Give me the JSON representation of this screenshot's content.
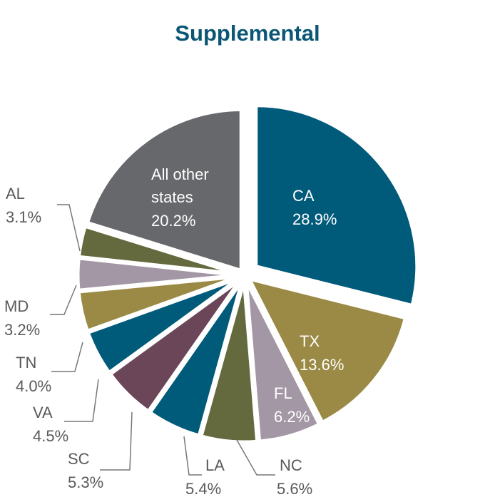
{
  "chart_data": {
    "type": "pie",
    "title": "Supplemental",
    "slices": [
      {
        "label": "CA",
        "value": 28.9,
        "display": "28.9%",
        "color": "#005a7a"
      },
      {
        "label": "TX",
        "value": 13.6,
        "display": "13.6%",
        "color": "#9a8a45"
      },
      {
        "label": "FL",
        "value": 6.2,
        "display": "6.2%",
        "color": "#a397a6"
      },
      {
        "label": "NC",
        "value": 5.6,
        "display": "5.6%",
        "color": "#656a3e"
      },
      {
        "label": "LA",
        "value": 5.4,
        "display": "5.4%",
        "color": "#005a7a"
      },
      {
        "label": "SC",
        "value": 5.3,
        "display": "5.3%",
        "color": "#6a4658"
      },
      {
        "label": "VA",
        "value": 4.5,
        "display": "4.5%",
        "color": "#005a7a"
      },
      {
        "label": "TN",
        "value": 4.0,
        "display": "4.0%",
        "color": "#9a8a45"
      },
      {
        "label": "MD",
        "value": 3.2,
        "display": "3.2%",
        "color": "#a397a6"
      },
      {
        "label": "AL",
        "value": 3.1,
        "display": "3.1%",
        "color": "#656a3e"
      },
      {
        "label": "All other states",
        "label_lines": [
          "All other",
          "states"
        ],
        "value": 20.2,
        "display": "20.2%",
        "color": "#67686c"
      }
    ],
    "start": "12 o'clock",
    "direction": "clockwise",
    "exploded": "CA"
  }
}
